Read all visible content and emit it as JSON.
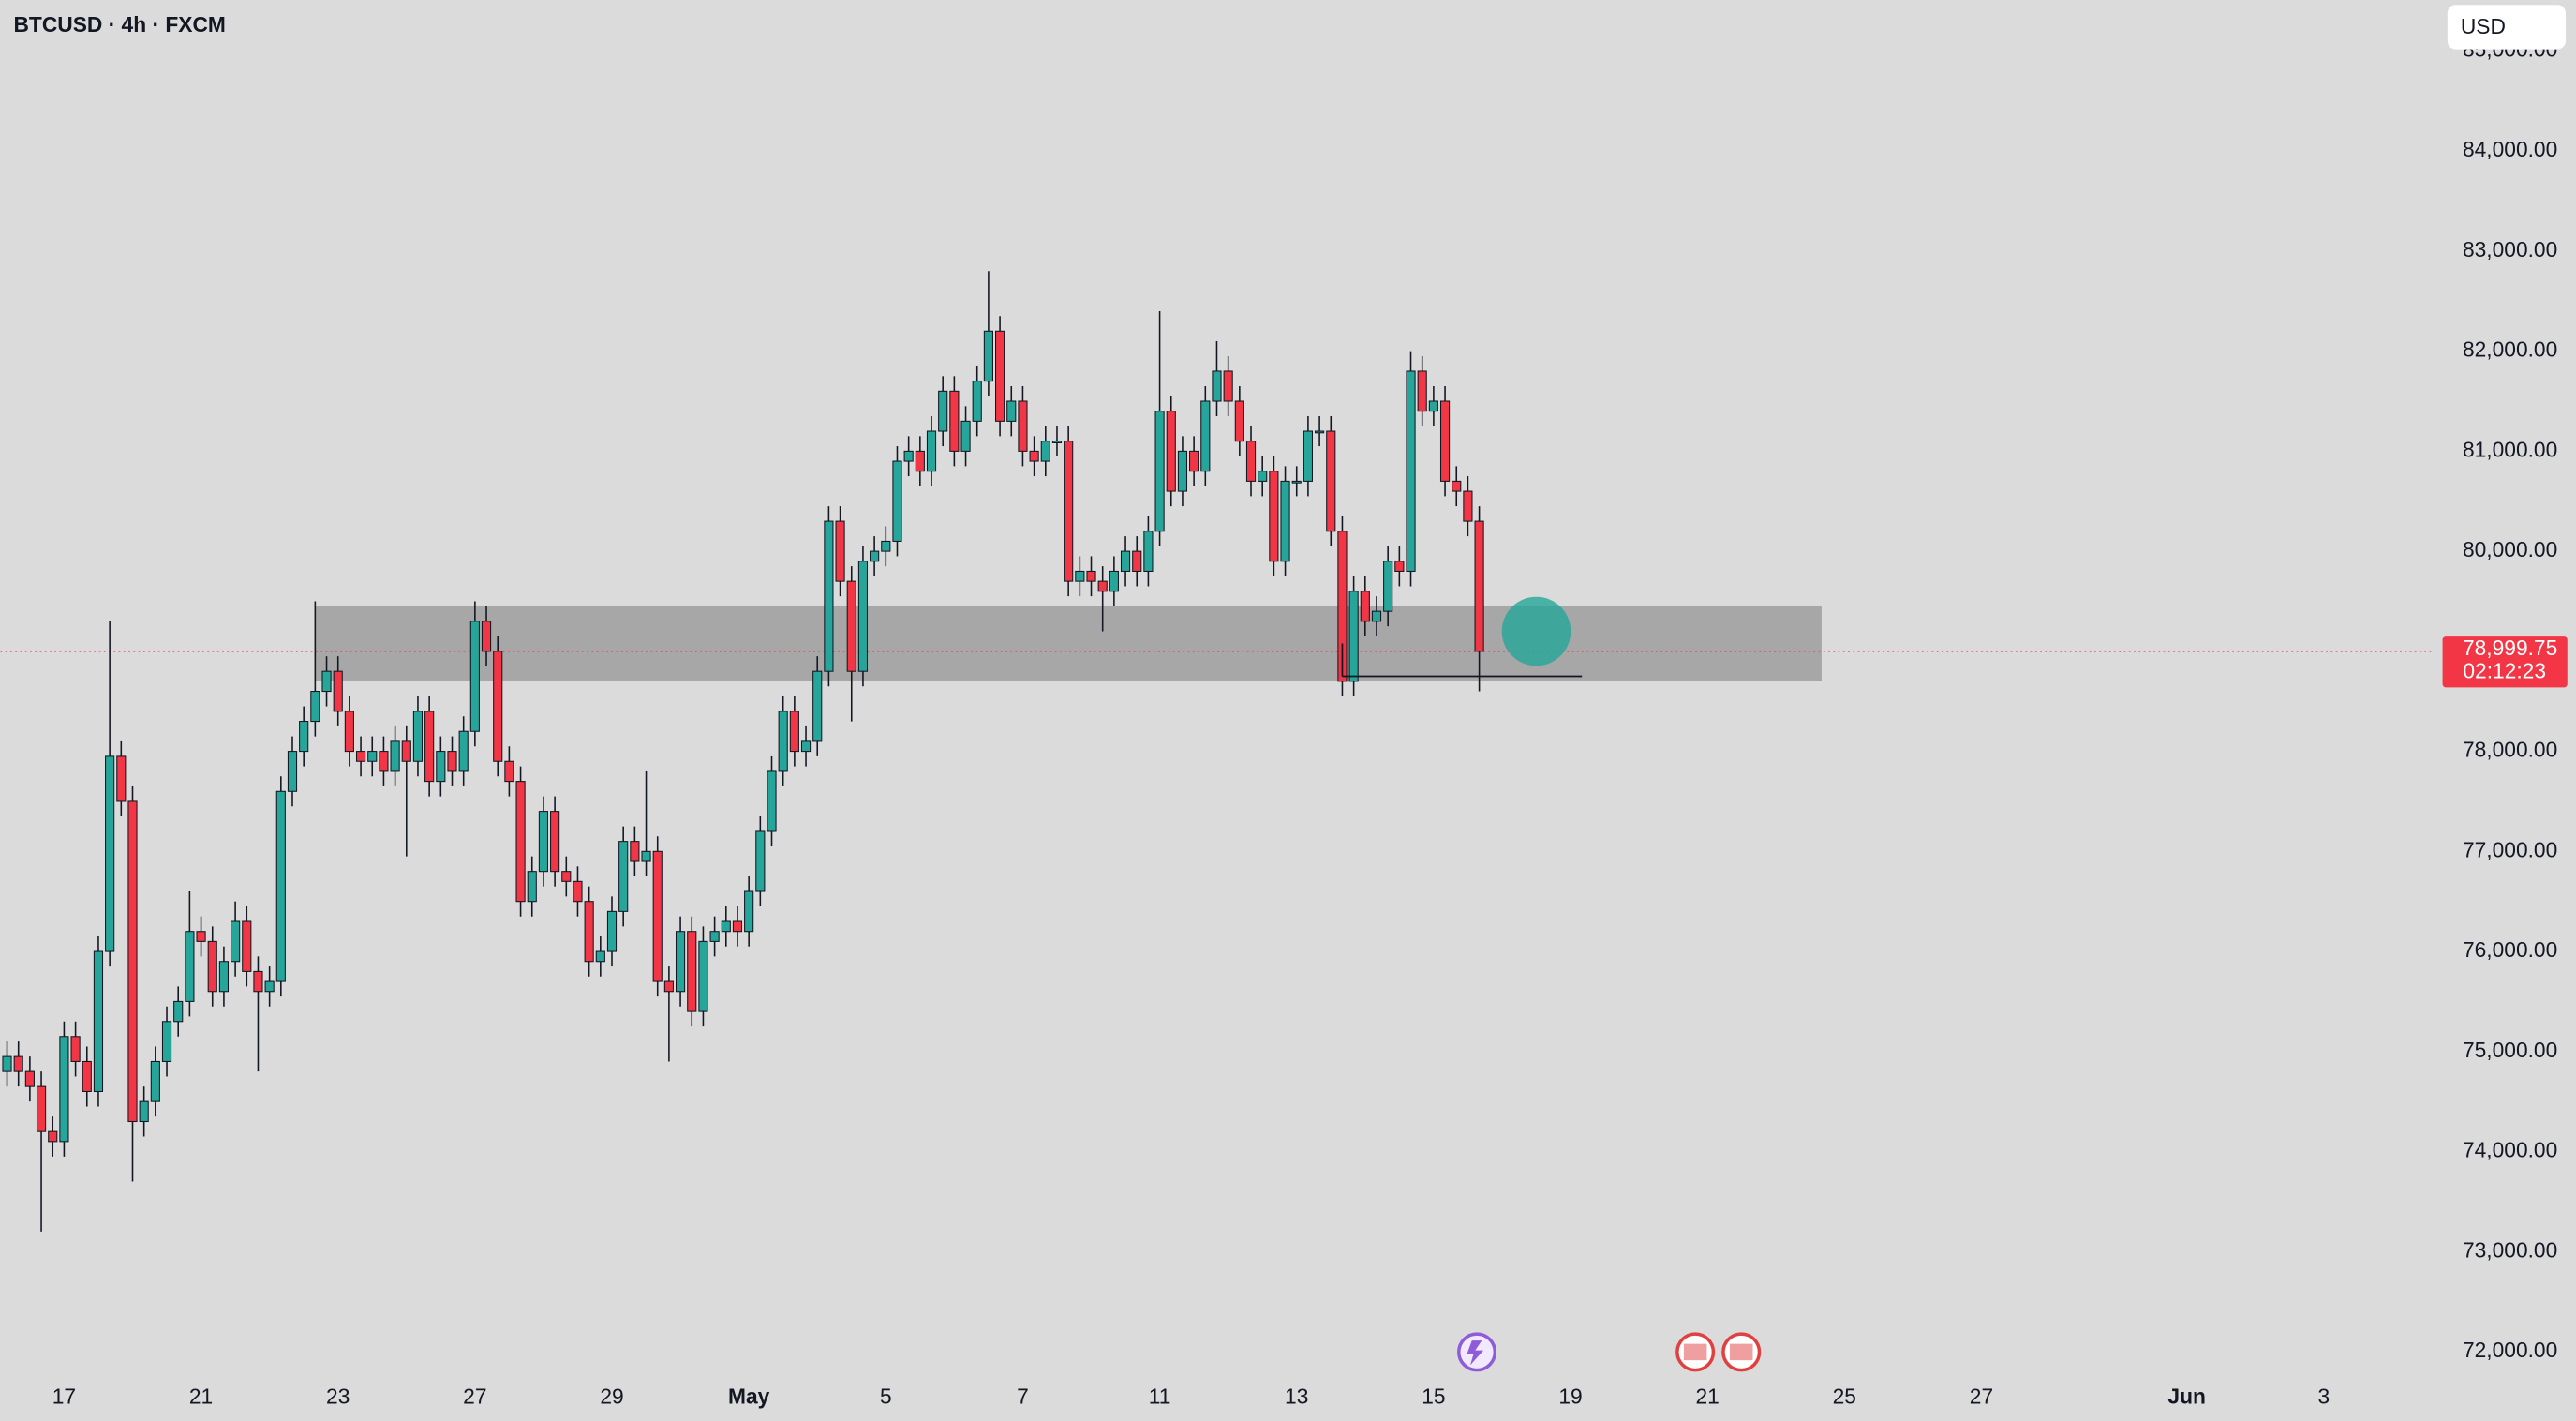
{
  "chart_data": {
    "type": "candlestick",
    "title": "BTCUSD · 4h · FXCM",
    "currency": "USD",
    "up_color": "#26a69a",
    "down_color": "#f23645",
    "open": [
      74800,
      74950,
      74800,
      74650,
      74200,
      74100,
      75150,
      74900,
      74600,
      76000,
      77950,
      77500,
      74300,
      74500,
      74900,
      75300,
      75500,
      76200,
      76100,
      75600,
      75900,
      76300,
      75800,
      75600,
      75700,
      77600,
      78000,
      78300,
      78600,
      78800,
      78400,
      78000,
      77900,
      78000,
      77800,
      78100,
      77900,
      78400,
      77700,
      78000,
      77800,
      78200,
      79300,
      79000,
      77900,
      77700,
      76500,
      76800,
      77400,
      76800,
      76700,
      76500,
      75900,
      76000,
      76400,
      77100,
      76900,
      77000,
      75700,
      75600,
      76200,
      75400,
      76100,
      76200,
      76300,
      76200,
      76600,
      77200,
      77800,
      78400,
      78000,
      78100,
      78800,
      80300,
      79700,
      78800,
      79900,
      80000,
      80100,
      80900,
      81000,
      80800,
      81200,
      81600,
      81000,
      81300,
      81700,
      82200,
      81300,
      81500,
      81000,
      80900,
      81100,
      81100,
      79700,
      79800,
      79700,
      79600,
      79800,
      80000,
      79800,
      80200,
      81400,
      80600,
      81000,
      80800,
      81500,
      81800,
      81500,
      81100,
      80700,
      80800,
      79900,
      80700,
      80700,
      81200,
      81200,
      80200,
      78700,
      79600,
      79300,
      79400,
      79900,
      79800,
      81800,
      81400,
      81500,
      80700,
      80600,
      80300
    ],
    "high": [
      75100,
      75100,
      74950,
      74800,
      74350,
      75300,
      75300,
      75050,
      76150,
      79300,
      78100,
      77650,
      74650,
      75050,
      75450,
      75650,
      76600,
      76350,
      76250,
      76050,
      76500,
      76450,
      75950,
      75850,
      77750,
      78150,
      78450,
      79500,
      78950,
      78950,
      78550,
      78150,
      78150,
      78150,
      78250,
      78250,
      78550,
      78550,
      78150,
      78150,
      78350,
      79500,
      79450,
      79150,
      78050,
      77850,
      76950,
      77550,
      77550,
      76950,
      76850,
      76650,
      76150,
      76550,
      77250,
      77250,
      77800,
      77150,
      75850,
      76350,
      76350,
      76250,
      76350,
      76450,
      76450,
      76750,
      77350,
      77950,
      78550,
      78550,
      78250,
      78950,
      80450,
      80450,
      79850,
      80050,
      80150,
      80250,
      81050,
      81150,
      81150,
      81350,
      81750,
      81750,
      81450,
      81850,
      82800,
      82350,
      81650,
      81650,
      81150,
      81250,
      81250,
      81250,
      79950,
      79950,
      79850,
      79950,
      80150,
      80150,
      80350,
      82400,
      81550,
      81150,
      81150,
      81650,
      82100,
      81950,
      81650,
      81250,
      80950,
      80950,
      80850,
      80850,
      81350,
      81350,
      81350,
      80350,
      79750,
      79750,
      79550,
      80050,
      80050,
      82000,
      81950,
      81650,
      81650,
      80850,
      80750,
      80450
    ],
    "low": [
      74650,
      74650,
      74500,
      73200,
      73950,
      73950,
      74750,
      74450,
      74450,
      75850,
      77350,
      73700,
      74150,
      74350,
      74750,
      75150,
      75350,
      75950,
      75450,
      75450,
      75750,
      75650,
      74800,
      75450,
      75550,
      77450,
      77850,
      78150,
      78450,
      78250,
      77850,
      77750,
      77750,
      77650,
      77650,
      76950,
      77750,
      77550,
      77550,
      77650,
      77650,
      78050,
      78850,
      77750,
      77550,
      76350,
      76350,
      76650,
      76650,
      76550,
      76350,
      75750,
      75750,
      75850,
      76250,
      76750,
      76750,
      75550,
      74900,
      75450,
      75250,
      75250,
      75950,
      76050,
      76050,
      76050,
      76450,
      77050,
      77650,
      77850,
      77850,
      77950,
      78650,
      79550,
      78300,
      78650,
      79750,
      79850,
      79950,
      80750,
      80650,
      80650,
      81050,
      80850,
      80850,
      81150,
      81550,
      81150,
      81150,
      80850,
      80750,
      80750,
      80950,
      79550,
      79550,
      79550,
      79200,
      79450,
      79650,
      79650,
      79650,
      80050,
      80450,
      80450,
      80650,
      80650,
      81350,
      81350,
      80950,
      80550,
      80550,
      79750,
      79750,
      80550,
      80550,
      81050,
      80050,
      78550,
      78550,
      79150,
      79150,
      79250,
      79650,
      79650,
      81250,
      81250,
      80550,
      80450,
      80150,
      78600
    ],
    "close": [
      74950,
      74800,
      74650,
      74200,
      74100,
      75150,
      74900,
      74600,
      76000,
      77950,
      77500,
      74300,
      74500,
      74900,
      75300,
      75500,
      76200,
      76100,
      75600,
      75900,
      76300,
      75800,
      75600,
      75700,
      77600,
      78000,
      78300,
      78600,
      78800,
      78400,
      78000,
      77900,
      78000,
      77800,
      78100,
      77900,
      78400,
      77700,
      78000,
      77800,
      78200,
      79300,
      79000,
      77900,
      77700,
      76500,
      76800,
      77400,
      76800,
      76700,
      76500,
      75900,
      76000,
      76400,
      77100,
      76900,
      77000,
      75700,
      75600,
      76200,
      75400,
      76100,
      76200,
      76300,
      76200,
      76600,
      77200,
      77800,
      78400,
      78000,
      78100,
      78800,
      80300,
      79700,
      78800,
      79900,
      80000,
      80100,
      80900,
      81000,
      80800,
      81200,
      81600,
      81000,
      81300,
      81700,
      82200,
      81300,
      81500,
      81000,
      80900,
      81100,
      81100,
      79700,
      79800,
      79700,
      79600,
      79800,
      80000,
      79800,
      80200,
      81400,
      80600,
      81000,
      80800,
      81500,
      81800,
      81500,
      81100,
      80700,
      80800,
      79900,
      80700,
      80700,
      81200,
      81200,
      80200,
      78700,
      79600,
      79300,
      79400,
      79900,
      79800,
      81800,
      81400,
      81500,
      80700,
      80600,
      80300,
      78999.75
    ],
    "xlim": [
      -0.58,
      212.4
    ],
    "xticks": [
      {
        "value": 5,
        "label": "17"
      },
      {
        "value": 17,
        "label": "21"
      },
      {
        "value": 29,
        "label": "23"
      },
      {
        "value": 41,
        "label": "27"
      },
      {
        "value": 53,
        "label": "29"
      },
      {
        "value": 65,
        "label": "May"
      },
      {
        "value": 77,
        "label": "5"
      },
      {
        "value": 89,
        "label": "7"
      },
      {
        "value": 101,
        "label": "11"
      },
      {
        "value": 113,
        "label": "13"
      },
      {
        "value": 125,
        "label": "15"
      },
      {
        "value": 137,
        "label": "19"
      },
      {
        "value": 149,
        "label": "21"
      },
      {
        "value": 161,
        "label": "25"
      },
      {
        "value": 173,
        "label": "27"
      },
      {
        "value": 191,
        "label": "Jun"
      },
      {
        "value": 203,
        "label": "3"
      }
    ],
    "ylim": [
      71750,
      85510
    ],
    "yticks": [
      {
        "value": 72000,
        "label": "72,000.00"
      },
      {
        "value": 73000,
        "label": "73,000.00"
      },
      {
        "value": 74000,
        "label": "74,000.00"
      },
      {
        "value": 75000,
        "label": "75,000.00"
      },
      {
        "value": 76000,
        "label": "76,000.00"
      },
      {
        "value": 77000,
        "label": "77,000.00"
      },
      {
        "value": 78000,
        "label": "78,000.00"
      },
      {
        "value": 79000,
        "label": "79,000.00"
      },
      {
        "value": 80000,
        "label": "80,000.00"
      },
      {
        "value": 81000,
        "label": "81,000.00"
      },
      {
        "value": 82000,
        "label": "82,000.00"
      },
      {
        "value": 83000,
        "label": "83,000.00"
      },
      {
        "value": 84000,
        "label": "84,000.00"
      },
      {
        "value": 85000,
        "label": "85,000.00"
      }
    ],
    "last_price": {
      "value": 78999.75,
      "label": "78,999.75",
      "countdown": "02:12:23"
    },
    "zone": {
      "x": [
        27,
        159
      ],
      "y": [
        78700,
        79450
      ],
      "color": "#9e9e9e"
    },
    "level": {
      "x": [
        117,
        138
      ],
      "y": 78750
    },
    "marker": {
      "x": 134,
      "y": 79200,
      "color": "#26a69a"
    }
  }
}
